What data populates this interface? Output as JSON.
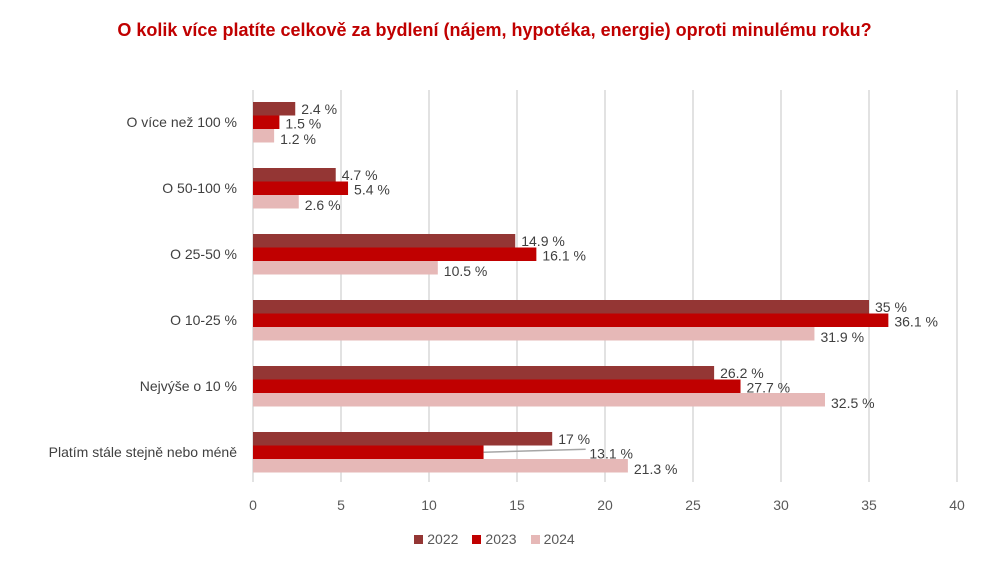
{
  "chart_data": {
    "type": "bar",
    "orientation": "horizontal",
    "title": "O kolik více platíte celkově za bydlení (nájem, hypotéka, energie) oproti minulému roku?",
    "categories": [
      "O více než 100 %",
      "O 50-100 %",
      "O 25-50 %",
      "O 10-25 %",
      "Nejvýše o 10 %",
      "Platím stále stejně nebo méně"
    ],
    "series": [
      {
        "name": "2022",
        "color": "#943634",
        "values": [
          2.4,
          4.7,
          14.9,
          35,
          26.2,
          17
        ],
        "labels": [
          "2.4 %",
          "4.7 %",
          "14.9 %",
          "35 %",
          "26.2 %",
          "17 %"
        ]
      },
      {
        "name": "2023",
        "color": "#C00000",
        "values": [
          1.5,
          5.4,
          16.1,
          36.1,
          27.7,
          13.1
        ],
        "labels": [
          "1.5 %",
          "5.4 %",
          "16.1 %",
          "36.1 %",
          "27.7 %",
          "13.1 %"
        ]
      },
      {
        "name": "2024",
        "color": "#E6B8B7",
        "values": [
          1.2,
          2.6,
          10.5,
          31.9,
          32.5,
          21.3
        ],
        "labels": [
          "1.2 %",
          "2.6 %",
          "10.5 %",
          "31.9 %",
          "32.5 %",
          "21.3 %"
        ]
      }
    ],
    "xlim": [
      0,
      40
    ],
    "xticks": [
      "0",
      "5",
      "10",
      "15",
      "20",
      "25",
      "30",
      "35",
      "40"
    ],
    "grid": true,
    "legend": "bottom"
  }
}
